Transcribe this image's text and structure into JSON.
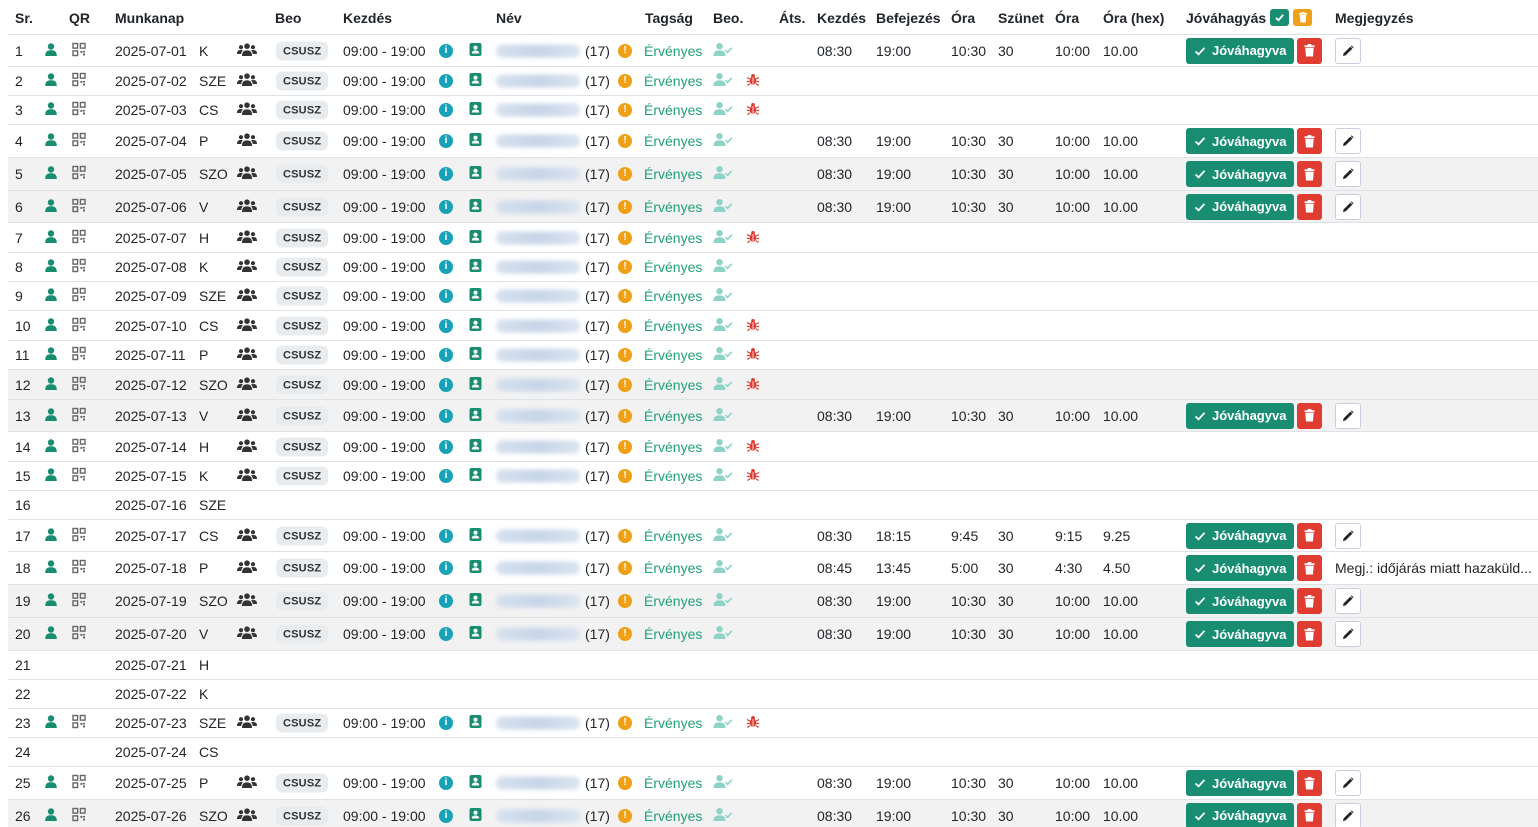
{
  "headers": {
    "sr": "Sr.",
    "qr": "QR",
    "munkanap": "Munkanap",
    "beo": "Beo",
    "kezdes": "Kezdés",
    "nev": "Név",
    "tagsag": "Tagság",
    "beo2": "Beo.",
    "ats": "Áts.",
    "kezdes2": "Kezdés",
    "befejezes": "Befejezés",
    "ora": "Óra",
    "szunet": "Szünet",
    "ora2": "Óra",
    "ora_hex": "Óra (hex)",
    "jovahagyas": "Jóváhagyás",
    "megjegyzes": "Megjegyzés"
  },
  "labels": {
    "badge": "CSUSZ",
    "approve": "Jóváhagyva",
    "status": "Érvényes",
    "age": "(17)",
    "info_glyph": "i",
    "warn_glyph": "!"
  },
  "colors": {
    "accent_green": "#198d72",
    "delete_red": "#e03c31",
    "warning_orange": "#f0a016",
    "info_teal": "#17a2b8",
    "status_green": "#20a07a",
    "bug_red": "#e03c31",
    "row_shade": "#f2f2f2"
  },
  "icons": {
    "person": "person-icon",
    "qr": "qr-code-icon",
    "group": "users-icon",
    "info": "info-icon",
    "contact": "contact-card-icon",
    "warning": "warning-icon",
    "user_check": "user-check-icon",
    "bug": "bug-icon",
    "check": "check-icon",
    "trash": "trash-icon",
    "pencil": "pencil-icon"
  },
  "rows": [
    {
      "sr": "1",
      "date": "2025-07-01",
      "day": "K",
      "shift": "09:00 - 19:00",
      "bug": false,
      "start": "08:30",
      "end": "19:00",
      "hours": "10:30",
      "break": "30",
      "net": "10:00",
      "hex": "10.00",
      "approved": true,
      "note": "",
      "edit": true,
      "shade": false,
      "empty": false
    },
    {
      "sr": "2",
      "date": "2025-07-02",
      "day": "SZE",
      "shift": "09:00 - 19:00",
      "bug": true,
      "start": "",
      "end": "",
      "hours": "",
      "break": "",
      "net": "",
      "hex": "",
      "approved": false,
      "note": "",
      "edit": false,
      "shade": false,
      "empty": false
    },
    {
      "sr": "3",
      "date": "2025-07-03",
      "day": "CS",
      "shift": "09:00 - 19:00",
      "bug": true,
      "start": "",
      "end": "",
      "hours": "",
      "break": "",
      "net": "",
      "hex": "",
      "approved": false,
      "note": "",
      "edit": false,
      "shade": false,
      "empty": false
    },
    {
      "sr": "4",
      "date": "2025-07-04",
      "day": "P",
      "shift": "09:00 - 19:00",
      "bug": false,
      "start": "08:30",
      "end": "19:00",
      "hours": "10:30",
      "break": "30",
      "net": "10:00",
      "hex": "10.00",
      "approved": true,
      "note": "",
      "edit": true,
      "shade": false,
      "empty": false
    },
    {
      "sr": "5",
      "date": "2025-07-05",
      "day": "SZO",
      "shift": "09:00 - 19:00",
      "bug": false,
      "start": "08:30",
      "end": "19:00",
      "hours": "10:30",
      "break": "30",
      "net": "10:00",
      "hex": "10.00",
      "approved": true,
      "note": "",
      "edit": true,
      "shade": true,
      "empty": false
    },
    {
      "sr": "6",
      "date": "2025-07-06",
      "day": "V",
      "shift": "09:00 - 19:00",
      "bug": false,
      "start": "08:30",
      "end": "19:00",
      "hours": "10:30",
      "break": "30",
      "net": "10:00",
      "hex": "10.00",
      "approved": true,
      "note": "",
      "edit": true,
      "shade": true,
      "empty": false
    },
    {
      "sr": "7",
      "date": "2025-07-07",
      "day": "H",
      "shift": "09:00 - 19:00",
      "bug": true,
      "start": "",
      "end": "",
      "hours": "",
      "break": "",
      "net": "",
      "hex": "",
      "approved": false,
      "note": "",
      "edit": false,
      "shade": false,
      "empty": false
    },
    {
      "sr": "8",
      "date": "2025-07-08",
      "day": "K",
      "shift": "09:00 - 19:00",
      "bug": false,
      "start": "",
      "end": "",
      "hours": "",
      "break": "",
      "net": "",
      "hex": "",
      "approved": false,
      "note": "",
      "edit": false,
      "shade": false,
      "empty": false
    },
    {
      "sr": "9",
      "date": "2025-07-09",
      "day": "SZE",
      "shift": "09:00 - 19:00",
      "bug": false,
      "start": "",
      "end": "",
      "hours": "",
      "break": "",
      "net": "",
      "hex": "",
      "approved": false,
      "note": "",
      "edit": false,
      "shade": false,
      "empty": false
    },
    {
      "sr": "10",
      "date": "2025-07-10",
      "day": "CS",
      "shift": "09:00 - 19:00",
      "bug": true,
      "start": "",
      "end": "",
      "hours": "",
      "break": "",
      "net": "",
      "hex": "",
      "approved": false,
      "note": "",
      "edit": false,
      "shade": false,
      "empty": false
    },
    {
      "sr": "11",
      "date": "2025-07-11",
      "day": "P",
      "shift": "09:00 - 19:00",
      "bug": true,
      "start": "",
      "end": "",
      "hours": "",
      "break": "",
      "net": "",
      "hex": "",
      "approved": false,
      "note": "",
      "edit": false,
      "shade": false,
      "empty": false
    },
    {
      "sr": "12",
      "date": "2025-07-12",
      "day": "SZO",
      "shift": "09:00 - 19:00",
      "bug": true,
      "start": "",
      "end": "",
      "hours": "",
      "break": "",
      "net": "",
      "hex": "",
      "approved": false,
      "note": "",
      "edit": false,
      "shade": true,
      "empty": false
    },
    {
      "sr": "13",
      "date": "2025-07-13",
      "day": "V",
      "shift": "09:00 - 19:00",
      "bug": false,
      "start": "08:30",
      "end": "19:00",
      "hours": "10:30",
      "break": "30",
      "net": "10:00",
      "hex": "10.00",
      "approved": true,
      "note": "",
      "edit": true,
      "shade": true,
      "empty": false
    },
    {
      "sr": "14",
      "date": "2025-07-14",
      "day": "H",
      "shift": "09:00 - 19:00",
      "bug": true,
      "start": "",
      "end": "",
      "hours": "",
      "break": "",
      "net": "",
      "hex": "",
      "approved": false,
      "note": "",
      "edit": false,
      "shade": false,
      "empty": false
    },
    {
      "sr": "15",
      "date": "2025-07-15",
      "day": "K",
      "shift": "09:00 - 19:00",
      "bug": true,
      "start": "",
      "end": "",
      "hours": "",
      "break": "",
      "net": "",
      "hex": "",
      "approved": false,
      "note": "",
      "edit": false,
      "shade": false,
      "empty": false
    },
    {
      "sr": "16",
      "date": "2025-07-16",
      "day": "SZE",
      "shift": "",
      "bug": false,
      "start": "",
      "end": "",
      "hours": "",
      "break": "",
      "net": "",
      "hex": "",
      "approved": false,
      "note": "",
      "edit": false,
      "shade": false,
      "empty": true
    },
    {
      "sr": "17",
      "date": "2025-07-17",
      "day": "CS",
      "shift": "09:00 - 19:00",
      "bug": false,
      "start": "08:30",
      "end": "18:15",
      "hours": "9:45",
      "break": "30",
      "net": "9:15",
      "hex": "9.25",
      "approved": true,
      "note": "",
      "edit": true,
      "shade": false,
      "empty": false
    },
    {
      "sr": "18",
      "date": "2025-07-18",
      "day": "P",
      "shift": "09:00 - 19:00",
      "bug": false,
      "start": "08:45",
      "end": "13:45",
      "hours": "5:00",
      "break": "30",
      "net": "4:30",
      "hex": "4.50",
      "approved": true,
      "note": "Megj.: időjárás miatt hazaküld...",
      "edit": false,
      "shade": false,
      "empty": false
    },
    {
      "sr": "19",
      "date": "2025-07-19",
      "day": "SZO",
      "shift": "09:00 - 19:00",
      "bug": false,
      "start": "08:30",
      "end": "19:00",
      "hours": "10:30",
      "break": "30",
      "net": "10:00",
      "hex": "10.00",
      "approved": true,
      "note": "",
      "edit": true,
      "shade": true,
      "empty": false
    },
    {
      "sr": "20",
      "date": "2025-07-20",
      "day": "V",
      "shift": "09:00 - 19:00",
      "bug": false,
      "start": "08:30",
      "end": "19:00",
      "hours": "10:30",
      "break": "30",
      "net": "10:00",
      "hex": "10.00",
      "approved": true,
      "note": "",
      "edit": true,
      "shade": true,
      "empty": false
    },
    {
      "sr": "21",
      "date": "2025-07-21",
      "day": "H",
      "shift": "",
      "bug": false,
      "start": "",
      "end": "",
      "hours": "",
      "break": "",
      "net": "",
      "hex": "",
      "approved": false,
      "note": "",
      "edit": false,
      "shade": false,
      "empty": true
    },
    {
      "sr": "22",
      "date": "2025-07-22",
      "day": "K",
      "shift": "",
      "bug": false,
      "start": "",
      "end": "",
      "hours": "",
      "break": "",
      "net": "",
      "hex": "",
      "approved": false,
      "note": "",
      "edit": false,
      "shade": false,
      "empty": true
    },
    {
      "sr": "23",
      "date": "2025-07-23",
      "day": "SZE",
      "shift": "09:00 - 19:00",
      "bug": true,
      "start": "",
      "end": "",
      "hours": "",
      "break": "",
      "net": "",
      "hex": "",
      "approved": false,
      "note": "",
      "edit": false,
      "shade": false,
      "empty": false
    },
    {
      "sr": "24",
      "date": "2025-07-24",
      "day": "CS",
      "shift": "",
      "bug": false,
      "start": "",
      "end": "",
      "hours": "",
      "break": "",
      "net": "",
      "hex": "",
      "approved": false,
      "note": "",
      "edit": false,
      "shade": false,
      "empty": true
    },
    {
      "sr": "25",
      "date": "2025-07-25",
      "day": "P",
      "shift": "09:00 - 19:00",
      "bug": false,
      "start": "08:30",
      "end": "19:00",
      "hours": "10:30",
      "break": "30",
      "net": "10:00",
      "hex": "10.00",
      "approved": true,
      "note": "",
      "edit": true,
      "shade": false,
      "empty": false
    },
    {
      "sr": "26",
      "date": "2025-07-26",
      "day": "SZO",
      "shift": "09:00 - 19:00",
      "bug": false,
      "start": "08:30",
      "end": "19:00",
      "hours": "10:30",
      "break": "30",
      "net": "10:00",
      "hex": "10.00",
      "approved": true,
      "note": "",
      "edit": true,
      "shade": true,
      "empty": false
    }
  ]
}
